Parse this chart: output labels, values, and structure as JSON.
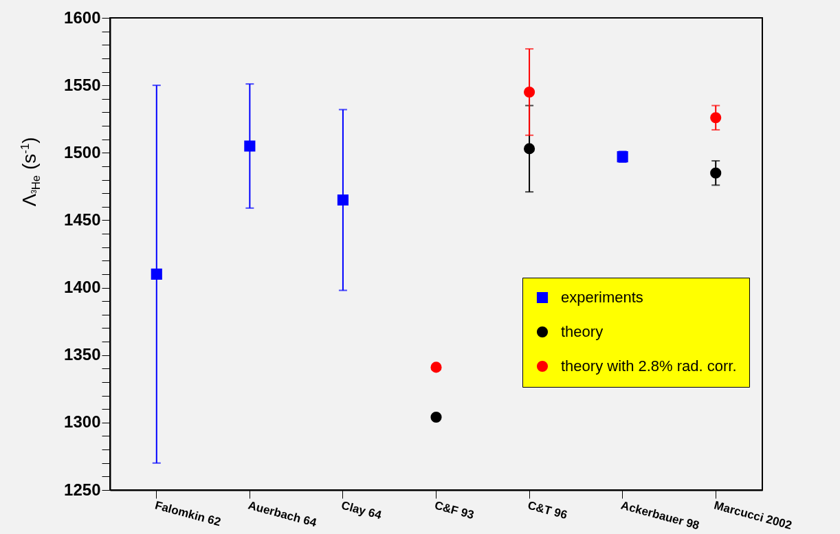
{
  "chart_data": {
    "type": "scatter",
    "ylabel": "Λ$_{³He}$ (s$^{-1}$)",
    "categories": [
      "Falomkin 62",
      "Auerbach 64",
      "Clay 64",
      "C&F 93",
      "C&T 96",
      "Ackerbauer 98",
      "Marcucci 2002"
    ],
    "ylim": [
      1250,
      1600
    ],
    "yticks": [
      1250,
      {
        "value": 1260,
        "label": null
      },
      {
        "value": 1270,
        "label": null
      },
      {
        "value": 1280,
        "label": null
      },
      {
        "value": 1290,
        "label": null
      },
      1300,
      {
        "value": 1310,
        "label": null
      },
      {
        "value": 1320,
        "label": null
      },
      {
        "value": 1330,
        "label": null
      },
      {
        "value": 1340,
        "label": null
      },
      1350,
      {
        "value": 1360,
        "label": null
      },
      {
        "value": 1370,
        "label": null
      },
      {
        "value": 1380,
        "label": null
      },
      {
        "value": 1390,
        "label": null
      },
      1400,
      {
        "value": 1410,
        "label": null
      },
      {
        "value": 1420,
        "label": null
      },
      {
        "value": 1430,
        "label": null
      },
      {
        "value": 1440,
        "label": null
      },
      1450,
      {
        "value": 1460,
        "label": null
      },
      {
        "value": 1470,
        "label": null
      },
      {
        "value": 1480,
        "label": null
      },
      {
        "value": 1490,
        "label": null
      },
      1500,
      {
        "value": 1510,
        "label": null
      },
      {
        "value": 1520,
        "label": null
      },
      {
        "value": 1530,
        "label": null
      },
      {
        "value": 1540,
        "label": null
      },
      1550,
      {
        "value": 1560,
        "label": null
      },
      {
        "value": 1570,
        "label": null
      },
      {
        "value": 1580,
        "label": null
      },
      {
        "value": 1590,
        "label": null
      },
      1600
    ],
    "grid": false,
    "legend": "bottom right",
    "series": [
      {
        "name": "experiments",
        "color": "#0000ff",
        "marker": "square",
        "values": [
          1410,
          1505,
          1465,
          null,
          null,
          1497,
          null
        ],
        "errors": [
          140,
          46,
          67,
          null,
          null,
          4,
          null
        ]
      },
      {
        "name": "theory",
        "color": "#000000",
        "marker": "circle",
        "values": [
          null,
          null,
          null,
          1304,
          1503,
          null,
          1485
        ],
        "errors": [
          null,
          null,
          null,
          null,
          32,
          null,
          9
        ]
      },
      {
        "name": "theory with 2.8% rad. corr.",
        "color": "#ff0000",
        "marker": "circle",
        "values": [
          null,
          null,
          null,
          1341,
          1545,
          null,
          1526
        ],
        "errors": [
          null,
          null,
          null,
          null,
          32,
          null,
          9
        ]
      }
    ]
  }
}
